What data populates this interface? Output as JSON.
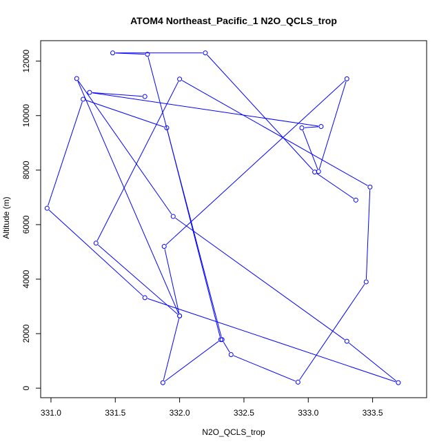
{
  "chart_data": {
    "type": "line",
    "title": "ATOM4 Northeast_Pacific_1 N2O_QCLS_trop",
    "xlabel": "N2O_QCLS_trop",
    "ylabel": "Altitude (m)",
    "xlim": [
      330.92,
      333.92
    ],
    "ylim": [
      -350,
      12750
    ],
    "x_ticks": [
      331.0,
      331.5,
      332.0,
      332.5,
      333.0,
      333.5
    ],
    "x_tick_labels": [
      "331.0",
      "331.5",
      "332.0",
      "332.5",
      "333.0",
      "333.5"
    ],
    "y_ticks": [
      0,
      2000,
      4000,
      6000,
      8000,
      10000,
      12000
    ],
    "y_tick_labels": [
      "0",
      "2000",
      "4000",
      "6000",
      "8000",
      "10000",
      "12000"
    ],
    "grid": false,
    "legend": "none",
    "colors": {
      "series": "#0000ff",
      "axis": "#000000"
    },
    "series": [
      {
        "marker": "open-circle",
        "x": [
          333.37,
          333.05,
          332.2,
          331.48,
          331.75,
          332.33,
          332.4,
          332.92,
          333.45,
          333.48,
          332.0,
          331.35,
          332.0,
          331.2,
          331.95,
          333.3,
          333.7,
          331.73,
          330.97,
          331.25,
          331.9,
          332.32,
          331.87,
          332.0,
          331.88,
          333.3,
          333.08,
          332.95,
          333.1,
          331.3,
          331.73
        ],
        "y": [
          6900,
          7930,
          12300,
          12300,
          12250,
          1780,
          1230,
          220,
          3900,
          7380,
          11340,
          5320,
          2650,
          11360,
          6300,
          1720,
          200,
          3320,
          6600,
          10600,
          9550,
          1780,
          200,
          2650,
          5200,
          11350,
          7950,
          9550,
          9600,
          10850,
          10700
        ]
      }
    ]
  }
}
